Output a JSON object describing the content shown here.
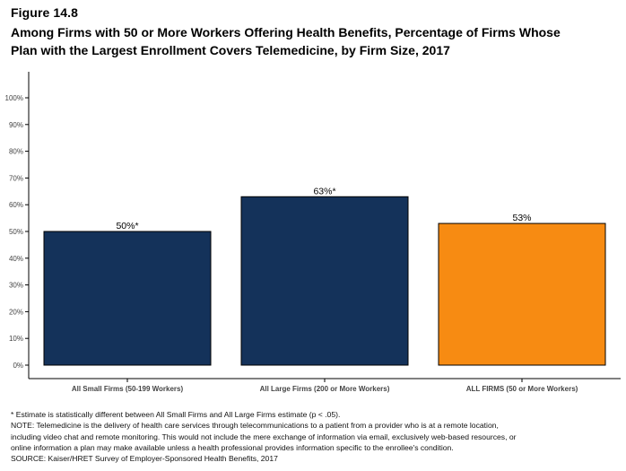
{
  "figure": {
    "label": "Figure 14.8",
    "title_line1": "Among Firms with 50 or More Workers Offering Health Benefits, Percentage of Firms Whose",
    "title_line2": "Plan with the Largest Enrollment Covers Telemedicine, by Firm Size, 2017"
  },
  "chart_data": {
    "type": "bar",
    "categories": [
      "All Small Firms (50-199 Workers)",
      "All Large Firms (200 or More Workers)",
      "ALL FIRMS (50 or More Workers)"
    ],
    "values": [
      50,
      63,
      53
    ],
    "data_labels": [
      "50%*",
      "63%*",
      "53%"
    ],
    "bar_colors": [
      "#14325a",
      "#14325a",
      "#f78b12"
    ],
    "ylim": [
      0,
      100
    ],
    "yticks": [
      0,
      10,
      20,
      30,
      40,
      50,
      60,
      70,
      80,
      90,
      100
    ],
    "ytick_labels": [
      "0%",
      "10%",
      "20%",
      "30%",
      "40%",
      "50%",
      "60%",
      "70%",
      "80%",
      "90%",
      "100%"
    ],
    "xlabel": "",
    "ylabel": "",
    "grid": false,
    "legend": false
  },
  "notes": {
    "line1": "* Estimate is statistically different between All Small Firms and All Large Firms estimate (p < .05).",
    "line2": "NOTE: Telemedicine is the delivery of health care services through telecommunications to a patient from a provider who is at a remote location,",
    "line3": "including video chat and remote monitoring. This would not include the mere exchange of information via email, exclusively web-based resources, or",
    "line4": "online information a plan may make available unless a health professional provides information specific to the enrollee's condition.",
    "line5": "SOURCE: Kaiser/HRET Survey of Employer-Sponsored Health Benefits, 2017"
  }
}
